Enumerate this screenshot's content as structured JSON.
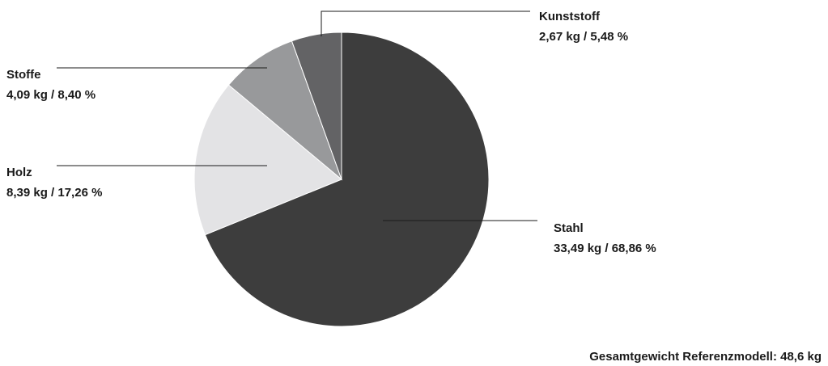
{
  "chart_data": {
    "type": "pie",
    "slices": [
      {
        "name": "Stahl",
        "value": 33.49,
        "unit": "kg",
        "percent": 68.86,
        "label": "33,49 kg / 68,86 %",
        "color": "#3d3d3d"
      },
      {
        "name": "Holz",
        "value": 8.39,
        "unit": "kg",
        "percent": 17.26,
        "label": "8,39 kg / 17,26 %",
        "color": "#e3e3e5"
      },
      {
        "name": "Stoffe",
        "value": 4.09,
        "unit": "kg",
        "percent": 8.4,
        "label": "4,09 kg / 8,40 %",
        "color": "#98999b"
      },
      {
        "name": "Kunststoff",
        "value": 2.67,
        "unit": "kg",
        "percent": 5.48,
        "label": "2,67 kg / 5,48 %",
        "color": "#636365"
      }
    ],
    "start_angle": "12 o'clock",
    "direction": "clockwise",
    "legend": "none",
    "footnote": "Gesamtgewicht Referenzmodell: 48,6 kg"
  }
}
